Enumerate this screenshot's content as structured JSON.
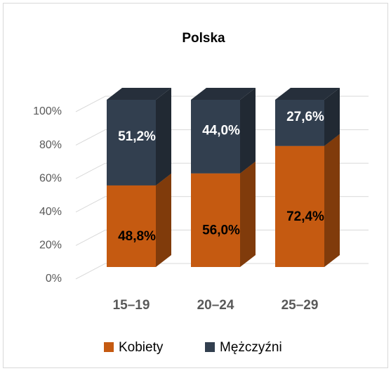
{
  "chart_data": {
    "type": "bar3d_stacked",
    "title": "Polska",
    "categories": [
      "15–19",
      "20–24",
      "25–29"
    ],
    "series": [
      {
        "name": "Kobiety",
        "color": "#c55a11",
        "label_color": "#000000",
        "values": [
          48.8,
          56.0,
          72.4
        ],
        "value_labels": [
          "48,8%",
          "56,0%",
          "72,4%"
        ]
      },
      {
        "name": "Mężczyźni",
        "color": "#323f4f",
        "label_color": "#ffffff",
        "values": [
          51.2,
          44.0,
          27.6
        ],
        "value_labels": [
          "51,2%",
          "44,0%",
          "27,6%"
        ]
      }
    ],
    "ylim": [
      0,
      100
    ],
    "yticks": [
      {
        "value": 0,
        "label": "0%"
      },
      {
        "value": 20,
        "label": "20%"
      },
      {
        "value": 40,
        "label": "40%"
      },
      {
        "value": 60,
        "label": "60%"
      },
      {
        "value": 80,
        "label": "80%"
      },
      {
        "value": 100,
        "label": "100%"
      }
    ],
    "grid": true,
    "legend": "bottom"
  }
}
